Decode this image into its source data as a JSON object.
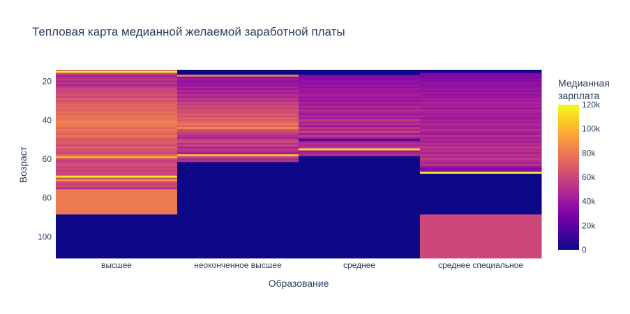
{
  "chart_data": {
    "type": "heatmap",
    "title": "Тепловая карта медианной желаемой заработной платы",
    "xlabel": "Образование",
    "ylabel": "Возраст",
    "categories": [
      "высшее",
      "неоконченное высшее",
      "среднее",
      "среднее специальное"
    ],
    "y_range": [
      14,
      111
    ],
    "y_reversed": true,
    "y_ticks": [
      20,
      40,
      60,
      80,
      100
    ],
    "colorbar": {
      "title": "Медианная зарплата",
      "range": [
        0,
        120000
      ],
      "ticks": [
        0,
        20000,
        40000,
        60000,
        80000,
        100000,
        120000
      ],
      "tick_labels": [
        "0",
        "20k",
        "40k",
        "60k",
        "80k",
        "100k",
        "120k"
      ],
      "colorscale": [
        "#0d0887",
        "#46039f",
        "#7201a8",
        "#9c179e",
        "#bd3786",
        "#d8576b",
        "#ed7953",
        "#fb9f3a",
        "#fdca26",
        "#f0f921"
      ]
    },
    "columns": [
      {
        "category": "высшее",
        "values": [
          {
            "age": 14,
            "value": 60000
          },
          {
            "age": 15,
            "value": 118000
          },
          {
            "age": 16,
            "value": 60000
          },
          {
            "age": 17,
            "value": 45000
          },
          {
            "age": 18,
            "value": 50000
          },
          {
            "age": 19,
            "value": 55000
          },
          {
            "age": 20,
            "value": 48000
          },
          {
            "age": 21,
            "value": 52000
          },
          {
            "age": 22,
            "value": 45000
          },
          {
            "age": 23,
            "value": 55000
          },
          {
            "age": 24,
            "value": 60000
          },
          {
            "age": 25,
            "value": 58000
          },
          {
            "age": 26,
            "value": 62000
          },
          {
            "age": 27,
            "value": 65000
          },
          {
            "age": 28,
            "value": 60000
          },
          {
            "age": 29,
            "value": 70000
          },
          {
            "age": 30,
            "value": 65000
          },
          {
            "age": 31,
            "value": 68000
          },
          {
            "age": 32,
            "value": 72000
          },
          {
            "age": 33,
            "value": 70000
          },
          {
            "age": 34,
            "value": 75000
          },
          {
            "age": 35,
            "value": 70000
          },
          {
            "age": 36,
            "value": 78000
          },
          {
            "age": 37,
            "value": 72000
          },
          {
            "age": 38,
            "value": 80000
          },
          {
            "age": 39,
            "value": 75000
          },
          {
            "age": 40,
            "value": 80000
          },
          {
            "age": 41,
            "value": 85000
          },
          {
            "age": 42,
            "value": 78000
          },
          {
            "age": 43,
            "value": 80000
          },
          {
            "age": 44,
            "value": 72000
          },
          {
            "age": 45,
            "value": 80000
          },
          {
            "age": 46,
            "value": 75000
          },
          {
            "age": 47,
            "value": 70000
          },
          {
            "age": 48,
            "value": 78000
          },
          {
            "age": 49,
            "value": 72000
          },
          {
            "age": 50,
            "value": 65000
          },
          {
            "age": 51,
            "value": 70000
          },
          {
            "age": 52,
            "value": 68000
          },
          {
            "age": 53,
            "value": 60000
          },
          {
            "age": 54,
            "value": 72000
          },
          {
            "age": 55,
            "value": 62000
          },
          {
            "age": 56,
            "value": 65000
          },
          {
            "age": 57,
            "value": 60000
          },
          {
            "age": 58,
            "value": 70000
          },
          {
            "age": 59,
            "value": 100000
          },
          {
            "age": 60,
            "value": 62000
          },
          {
            "age": 61,
            "value": 55000
          },
          {
            "age": 62,
            "value": 60000
          },
          {
            "age": 63,
            "value": 65000
          },
          {
            "age": 64,
            "value": 58000
          },
          {
            "age": 65,
            "value": 62000
          },
          {
            "age": 66,
            "value": 55000
          },
          {
            "age": 67,
            "value": 60000
          },
          {
            "age": 68,
            "value": 58000
          },
          {
            "age": 69,
            "value": 118000
          },
          {
            "age": 70,
            "value": 65000
          },
          {
            "age": 71,
            "value": 90000
          },
          {
            "age": 72,
            "value": 60000
          },
          {
            "age": 73,
            "value": 58000
          },
          {
            "age": 74,
            "value": 62000
          },
          {
            "age": 75,
            "value": 50000
          },
          {
            "age": 76,
            "value": 80000
          },
          {
            "age": 77,
            "value": 80000
          },
          {
            "age": 78,
            "value": 80000
          },
          {
            "age": 79,
            "value": 80000
          },
          {
            "age": 80,
            "value": 80000
          },
          {
            "age": 81,
            "value": 80000
          },
          {
            "age": 82,
            "value": 80000
          },
          {
            "age": 83,
            "value": 80000
          },
          {
            "age": 84,
            "value": 80000
          },
          {
            "age": 85,
            "value": 80000
          },
          {
            "age": 86,
            "value": 80000
          },
          {
            "age": 87,
            "value": 80000
          },
          {
            "age": 88,
            "value": 80000
          },
          {
            "age": 89,
            "value": 0
          }
        ]
      },
      {
        "category": "неоконченное высшее",
        "values": [
          {
            "age": 14,
            "value": 0
          },
          {
            "age": 15,
            "value": 0
          },
          {
            "age": 16,
            "value": 0
          },
          {
            "age": 17,
            "value": 85000
          },
          {
            "age": 18,
            "value": 38000
          },
          {
            "age": 19,
            "value": 42000
          },
          {
            "age": 20,
            "value": 35000
          },
          {
            "age": 21,
            "value": 40000
          },
          {
            "age": 22,
            "value": 38000
          },
          {
            "age": 23,
            "value": 45000
          },
          {
            "age": 24,
            "value": 40000
          },
          {
            "age": 25,
            "value": 48000
          },
          {
            "age": 26,
            "value": 42000
          },
          {
            "age": 27,
            "value": 50000
          },
          {
            "age": 28,
            "value": 45000
          },
          {
            "age": 29,
            "value": 55000
          },
          {
            "age": 30,
            "value": 50000
          },
          {
            "age": 31,
            "value": 60000
          },
          {
            "age": 32,
            "value": 55000
          },
          {
            "age": 33,
            "value": 62000
          },
          {
            "age": 34,
            "value": 58000
          },
          {
            "age": 35,
            "value": 65000
          },
          {
            "age": 36,
            "value": 60000
          },
          {
            "age": 37,
            "value": 70000
          },
          {
            "age": 38,
            "value": 62000
          },
          {
            "age": 39,
            "value": 72000
          },
          {
            "age": 40,
            "value": 65000
          },
          {
            "age": 41,
            "value": 75000
          },
          {
            "age": 42,
            "value": 80000
          },
          {
            "age": 43,
            "value": 70000
          },
          {
            "age": 44,
            "value": 85000
          },
          {
            "age": 45,
            "value": 65000
          },
          {
            "age": 46,
            "value": 60000
          },
          {
            "age": 47,
            "value": 55000
          },
          {
            "age": 48,
            "value": 50000
          },
          {
            "age": 49,
            "value": 45000
          },
          {
            "age": 50,
            "value": 55000
          },
          {
            "age": 51,
            "value": 65000
          },
          {
            "age": 52,
            "value": 50000
          },
          {
            "age": 53,
            "value": 60000
          },
          {
            "age": 54,
            "value": 45000
          },
          {
            "age": 55,
            "value": 55000
          },
          {
            "age": 56,
            "value": 50000
          },
          {
            "age": 57,
            "value": 40000
          },
          {
            "age": 58,
            "value": 105000
          },
          {
            "age": 59,
            "value": 60000
          },
          {
            "age": 60,
            "value": 45000
          },
          {
            "age": 61,
            "value": 50000
          },
          {
            "age": 62,
            "value": 0
          }
        ]
      },
      {
        "category": "среднее",
        "values": [
          {
            "age": 14,
            "value": 0
          },
          {
            "age": 15,
            "value": 0
          },
          {
            "age": 16,
            "value": 0
          },
          {
            "age": 17,
            "value": 30000
          },
          {
            "age": 18,
            "value": 35000
          },
          {
            "age": 19,
            "value": 32000
          },
          {
            "age": 20,
            "value": 38000
          },
          {
            "age": 21,
            "value": 35000
          },
          {
            "age": 22,
            "value": 40000
          },
          {
            "age": 23,
            "value": 36000
          },
          {
            "age": 24,
            "value": 42000
          },
          {
            "age": 25,
            "value": 38000
          },
          {
            "age": 26,
            "value": 40000
          },
          {
            "age": 27,
            "value": 45000
          },
          {
            "age": 28,
            "value": 40000
          },
          {
            "age": 29,
            "value": 42000
          },
          {
            "age": 30,
            "value": 38000
          },
          {
            "age": 31,
            "value": 45000
          },
          {
            "age": 32,
            "value": 40000
          },
          {
            "age": 33,
            "value": 48000
          },
          {
            "age": 34,
            "value": 42000
          },
          {
            "age": 35,
            "value": 50000
          },
          {
            "age": 36,
            "value": 45000
          },
          {
            "age": 37,
            "value": 40000
          },
          {
            "age": 38,
            "value": 48000
          },
          {
            "age": 39,
            "value": 42000
          },
          {
            "age": 40,
            "value": 55000
          },
          {
            "age": 41,
            "value": 45000
          },
          {
            "age": 42,
            "value": 50000
          },
          {
            "age": 43,
            "value": 40000
          },
          {
            "age": 44,
            "value": 55000
          },
          {
            "age": 45,
            "value": 45000
          },
          {
            "age": 46,
            "value": 60000
          },
          {
            "age": 47,
            "value": 40000
          },
          {
            "age": 48,
            "value": 55000
          },
          {
            "age": 49,
            "value": 45000
          },
          {
            "age": 50,
            "value": 10000
          },
          {
            "age": 51,
            "value": 40000
          },
          {
            "age": 52,
            "value": 50000
          },
          {
            "age": 53,
            "value": 45000
          },
          {
            "age": 54,
            "value": 55000
          },
          {
            "age": 55,
            "value": 115000
          },
          {
            "age": 56,
            "value": 40000
          },
          {
            "age": 57,
            "value": 45000
          },
          {
            "age": 58,
            "value": 50000
          },
          {
            "age": 59,
            "value": 0
          }
        ]
      },
      {
        "category": "среднее специальное",
        "values": [
          {
            "age": 14,
            "value": 0
          },
          {
            "age": 15,
            "value": 0
          },
          {
            "age": 16,
            "value": 30000
          },
          {
            "age": 17,
            "value": 32000
          },
          {
            "age": 18,
            "value": 30000
          },
          {
            "age": 19,
            "value": 35000
          },
          {
            "age": 20,
            "value": 33000
          },
          {
            "age": 21,
            "value": 38000
          },
          {
            "age": 22,
            "value": 35000
          },
          {
            "age": 23,
            "value": 37000
          },
          {
            "age": 24,
            "value": 40000
          },
          {
            "age": 25,
            "value": 36000
          },
          {
            "age": 26,
            "value": 42000
          },
          {
            "age": 27,
            "value": 38000
          },
          {
            "age": 28,
            "value": 40000
          },
          {
            "age": 29,
            "value": 44000
          },
          {
            "age": 30,
            "value": 40000
          },
          {
            "age": 31,
            "value": 46000
          },
          {
            "age": 32,
            "value": 42000
          },
          {
            "age": 33,
            "value": 45000
          },
          {
            "age": 34,
            "value": 40000
          },
          {
            "age": 35,
            "value": 48000
          },
          {
            "age": 36,
            "value": 44000
          },
          {
            "age": 37,
            "value": 42000
          },
          {
            "age": 38,
            "value": 46000
          },
          {
            "age": 39,
            "value": 40000
          },
          {
            "age": 40,
            "value": 45000
          },
          {
            "age": 41,
            "value": 42000
          },
          {
            "age": 42,
            "value": 48000
          },
          {
            "age": 43,
            "value": 44000
          },
          {
            "age": 44,
            "value": 42000
          },
          {
            "age": 45,
            "value": 50000
          },
          {
            "age": 46,
            "value": 45000
          },
          {
            "age": 47,
            "value": 40000
          },
          {
            "age": 48,
            "value": 52000
          },
          {
            "age": 49,
            "value": 44000
          },
          {
            "age": 50,
            "value": 48000
          },
          {
            "age": 51,
            "value": 42000
          },
          {
            "age": 52,
            "value": 50000
          },
          {
            "age": 53,
            "value": 46000
          },
          {
            "age": 54,
            "value": 55000
          },
          {
            "age": 55,
            "value": 48000
          },
          {
            "age": 56,
            "value": 50000
          },
          {
            "age": 57,
            "value": 45000
          },
          {
            "age": 58,
            "value": 52000
          },
          {
            "age": 59,
            "value": 48000
          },
          {
            "age": 60,
            "value": 55000
          },
          {
            "age": 61,
            "value": 50000
          },
          {
            "age": 62,
            "value": 45000
          },
          {
            "age": 63,
            "value": 52000
          },
          {
            "age": 64,
            "value": 40000
          },
          {
            "age": 65,
            "value": 30000
          },
          {
            "age": 66,
            "value": 35000
          },
          {
            "age": 67,
            "value": 118000
          },
          {
            "age": 68,
            "value": 0
          },
          {
            "age": 69,
            "value": 0
          },
          {
            "age": 70,
            "value": 0
          },
          {
            "age": 71,
            "value": 0
          },
          {
            "age": 72,
            "value": 0
          },
          {
            "age": 73,
            "value": 0
          },
          {
            "age": 74,
            "value": 0
          },
          {
            "age": 75,
            "value": 0
          },
          {
            "age": 76,
            "value": 0
          },
          {
            "age": 77,
            "value": 0
          },
          {
            "age": 78,
            "value": 0
          },
          {
            "age": 79,
            "value": 0
          },
          {
            "age": 80,
            "value": 0
          },
          {
            "age": 81,
            "value": 0
          },
          {
            "age": 82,
            "value": 0
          },
          {
            "age": 83,
            "value": 0
          },
          {
            "age": 84,
            "value": 0
          },
          {
            "age": 85,
            "value": 0
          },
          {
            "age": 86,
            "value": 0
          },
          {
            "age": 87,
            "value": 0
          },
          {
            "age": 88,
            "value": 0
          },
          {
            "age": 89,
            "value": 60000
          }
        ]
      }
    ]
  }
}
